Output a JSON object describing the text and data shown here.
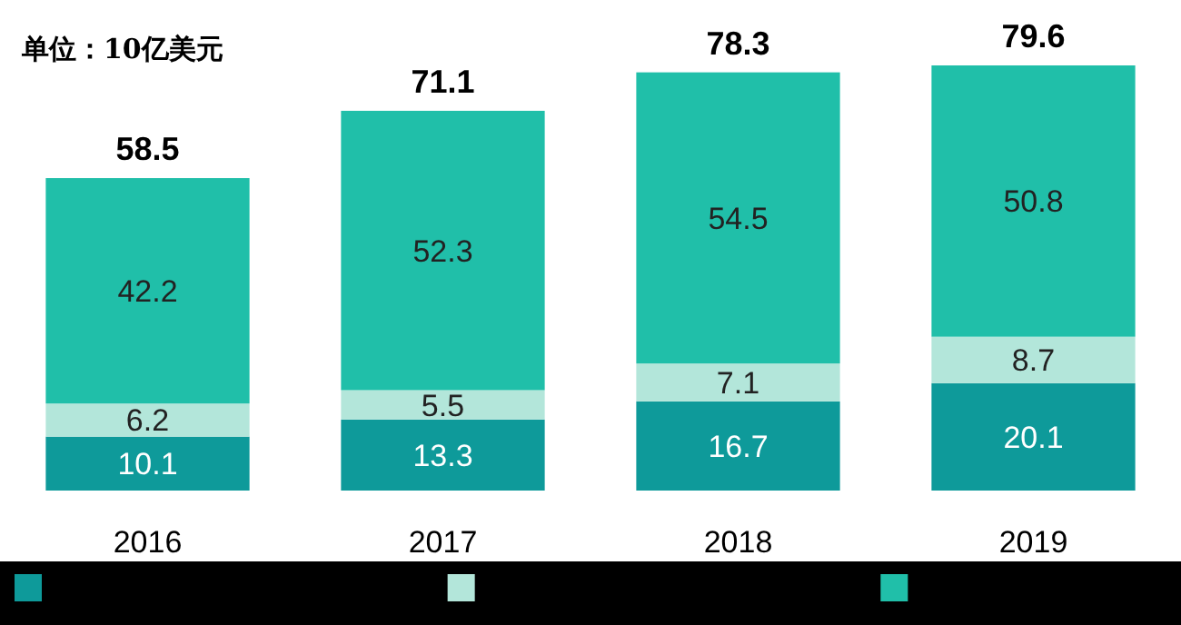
{
  "chart_data": {
    "type": "bar",
    "stacked": true,
    "data_labels": true,
    "annotations": [
      "单位：10亿美元"
    ],
    "categories": [
      "2016",
      "2017",
      "2018",
      "2019"
    ],
    "series": [
      {
        "color": "#0e9a9a",
        "values": [
          10.1,
          13.3,
          16.7,
          20.1
        ]
      },
      {
        "color": "#b3e6da",
        "values": [
          6.2,
          5.5,
          7.1,
          8.7
        ]
      },
      {
        "color": "#20bfa9",
        "values": [
          42.2,
          52.3,
          54.5,
          50.8
        ]
      }
    ],
    "totals": [
      "58.5",
      "71.1",
      "78.3",
      "79.6"
    ]
  }
}
